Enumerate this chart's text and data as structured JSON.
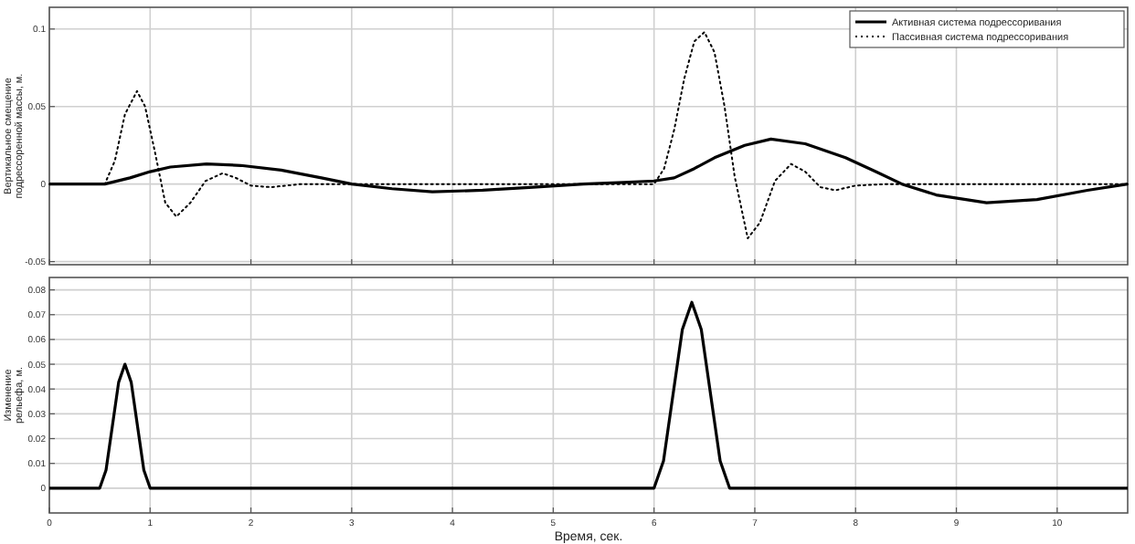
{
  "chart_data": [
    {
      "type": "line",
      "ylabel": "Вертикальное смещение подрессоренной массы, м.",
      "xlim": [
        0,
        10.7
      ],
      "xticks": [
        0,
        1,
        2,
        3,
        4,
        5,
        6,
        7,
        8,
        9,
        10
      ],
      "ylim": [
        -0.052,
        0.114
      ],
      "yticks": [
        -0.05,
        0,
        0.05,
        0.1
      ],
      "grid": true,
      "legend": "top right",
      "tick_labels": "y",
      "series": [
        {
          "name": "Активная система подрессоривания",
          "color": "#000000",
          "line_style": "solid",
          "x": [
            0,
            0.55,
            0.8,
            1.0,
            1.2,
            1.56,
            1.9,
            2.3,
            2.7,
            3.0,
            3.4,
            3.8,
            4.3,
            4.8,
            5.3,
            5.7,
            6.0,
            6.2,
            6.4,
            6.6,
            6.9,
            7.16,
            7.5,
            7.9,
            8.2,
            8.46,
            8.8,
            9.3,
            9.8,
            10.3,
            10.7
          ],
          "values": [
            0,
            0,
            0.004,
            0.008,
            0.011,
            0.013,
            0.012,
            0.009,
            0.004,
            0,
            -0.003,
            -0.005,
            -0.004,
            -0.002,
            0,
            0.001,
            0.002,
            0.004,
            0.01,
            0.017,
            0.025,
            0.029,
            0.026,
            0.017,
            0.008,
            0,
            -0.007,
            -0.012,
            -0.01,
            -0.004,
            0
          ]
        },
        {
          "name": "Пассивная система подрессоривания",
          "color": "#000000",
          "line_style": "dotted",
          "x": [
            0,
            0.5,
            0.55,
            0.65,
            0.75,
            0.87,
            0.95,
            1.05,
            1.15,
            1.26,
            1.4,
            1.55,
            1.72,
            1.85,
            2.0,
            2.2,
            2.5,
            3,
            4,
            5,
            6.0,
            6.1,
            6.2,
            6.3,
            6.4,
            6.5,
            6.6,
            6.7,
            6.8,
            6.93,
            7.05,
            7.2,
            7.36,
            7.5,
            7.65,
            7.8,
            8.0,
            8.3,
            9,
            10,
            10.7
          ],
          "values": [
            0,
            0,
            0,
            0.015,
            0.045,
            0.06,
            0.05,
            0.02,
            -0.012,
            -0.021,
            -0.012,
            0.002,
            0.007,
            0.004,
            -0.001,
            -0.002,
            0,
            0,
            0,
            0,
            0,
            0.01,
            0.035,
            0.068,
            0.092,
            0.098,
            0.085,
            0.05,
            0.005,
            -0.035,
            -0.025,
            0.002,
            0.013,
            0.008,
            -0.002,
            -0.004,
            -0.001,
            0,
            0,
            0,
            0
          ]
        }
      ]
    },
    {
      "type": "line",
      "xlabel": "Время, сек.",
      "ylabel": "Изменение рельефа, м.",
      "xlim": [
        0,
        10.7
      ],
      "xticks": [
        0,
        1,
        2,
        3,
        4,
        5,
        6,
        7,
        8,
        9,
        10
      ],
      "ylim": [
        -0.01,
        0.085
      ],
      "yticks": [
        0,
        0.01,
        0.02,
        0.03,
        0.04,
        0.05,
        0.06,
        0.07,
        0.08
      ],
      "grid": true,
      "series": [
        {
          "color": "#000000",
          "line_style": "solid",
          "x": [
            0,
            0.5,
            0.5625,
            0.625,
            0.6875,
            0.75,
            0.8125,
            0.875,
            0.9375,
            1.0,
            6.0,
            6.094,
            6.1875,
            6.281,
            6.375,
            6.469,
            6.5625,
            6.656,
            6.75,
            10.7
          ],
          "values": [
            0,
            0,
            0.0073,
            0.025,
            0.0427,
            0.05,
            0.0427,
            0.025,
            0.0073,
            0,
            0,
            0.011,
            0.0375,
            0.064,
            0.075,
            0.064,
            0.0375,
            0.011,
            0,
            0
          ]
        }
      ]
    }
  ]
}
